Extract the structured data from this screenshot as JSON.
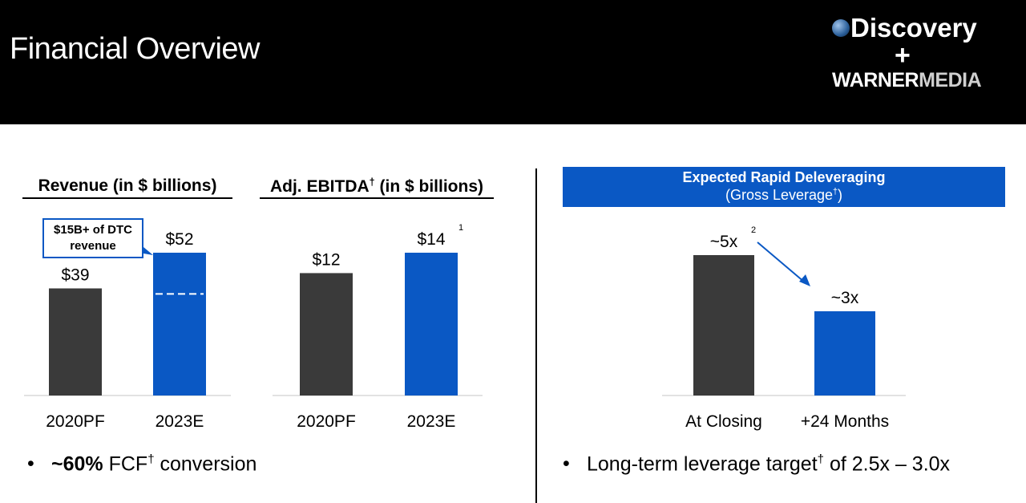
{
  "header": {
    "title": "Financial Overview",
    "logo_line1": "Discovery",
    "logo_plus": "+",
    "logo_warner": "WARNER",
    "logo_media": "MEDIA"
  },
  "colors": {
    "dark_bar": "#3a3a3a",
    "blue": "#0a58c4",
    "header_bg": "#000000"
  },
  "revenue_chart": {
    "title": "Revenue (in $ billions)",
    "callout_line1": "$15B+ of DTC",
    "callout_line2": "revenue"
  },
  "ebitda_chart": {
    "title_main": "Adj. EBITDA",
    "title_mark": "†",
    "title_rest": " (in $ billions)"
  },
  "leverage_chart": {
    "banner_title": "Expected Rapid Deleveraging",
    "banner_subtitle": "(Gross Leverage",
    "banner_mark": "†",
    "banner_close": ")"
  },
  "bullets": {
    "left_bold": "~60%",
    "left_rest1": " FCF",
    "left_mark": "†",
    "left_rest2": " conversion",
    "right_text": "Long-term leverage target",
    "right_mark": "†",
    "right_rest": " of 2.5x – 3.0x"
  },
  "chart_data": [
    {
      "type": "bar",
      "title": "Revenue (in $ billions)",
      "categories": [
        "2020PF",
        "2023E"
      ],
      "values": [
        39,
        52
      ],
      "labels": [
        "$39",
        "$52"
      ],
      "colors": [
        "#3a3a3a",
        "#0a58c4"
      ],
      "ylim": [
        0,
        52
      ],
      "annotation": "$15B+ of DTC revenue",
      "dtc_segment_value": 15
    },
    {
      "type": "bar",
      "title": "Adj. EBITDA† (in $ billions)",
      "categories": [
        "2020PF",
        "2023E"
      ],
      "values": [
        12,
        14
      ],
      "labels": [
        "$12",
        "$14"
      ],
      "footnotes": [
        "",
        "1"
      ],
      "colors": [
        "#3a3a3a",
        "#0a58c4"
      ],
      "ylim": [
        0,
        14
      ]
    },
    {
      "type": "bar",
      "title": "Expected Rapid Deleveraging (Gross Leverage†)",
      "categories": [
        "At Closing",
        "+24 Months"
      ],
      "values": [
        5,
        3
      ],
      "labels": [
        "~5x",
        "~3x"
      ],
      "footnotes": [
        "2",
        ""
      ],
      "colors": [
        "#3a3a3a",
        "#0a58c4"
      ],
      "ylim": [
        0,
        5
      ]
    }
  ]
}
